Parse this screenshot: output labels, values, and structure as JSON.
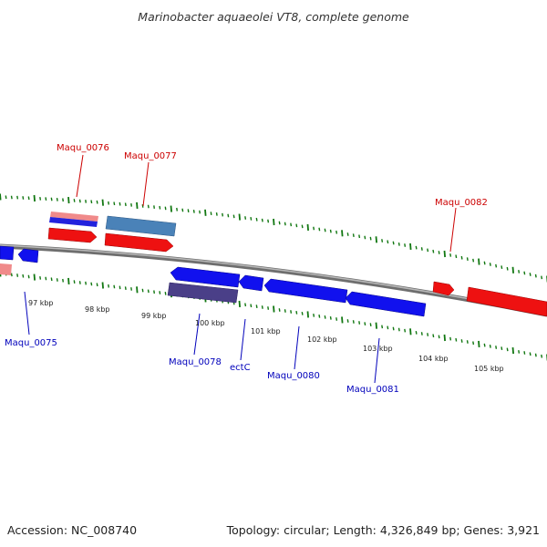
{
  "header": {
    "title": "Marinobacter aquaeolei VT8, complete genome"
  },
  "footer": {
    "accession": "Accession: NC_008740",
    "topology": "Topology: circular; Length: 4,326,849 bp; Genes: 3,921"
  },
  "colors": {
    "forward_gene": "#ee1111",
    "reverse_gene": "#1111ee",
    "forward_label": "#cc0000",
    "reverse_label": "#0000bb",
    "backbone": "#888888",
    "tick": "#117711",
    "rna_band": "#4a82b8",
    "operon_band": "#4a3f88"
  },
  "axis": {
    "tick_labels": [
      "97 kbp",
      "98 kbp",
      "99 kbp",
      "100 kbp",
      "101 kbp",
      "102 kbp",
      "103 kbp",
      "104 kbp",
      "105 kbp"
    ]
  },
  "genes": [
    {
      "label": "Maqu_0075",
      "strand": "reverse"
    },
    {
      "label": "Maqu_0076",
      "strand": "forward"
    },
    {
      "label": "Maqu_0077",
      "strand": "forward"
    },
    {
      "label": "Maqu_0078",
      "strand": "reverse"
    },
    {
      "label": "ectC",
      "strand": "reverse"
    },
    {
      "label": "Maqu_0080",
      "strand": "reverse"
    },
    {
      "label": "Maqu_0081",
      "strand": "reverse"
    },
    {
      "label": "Maqu_0082",
      "strand": "forward"
    }
  ]
}
